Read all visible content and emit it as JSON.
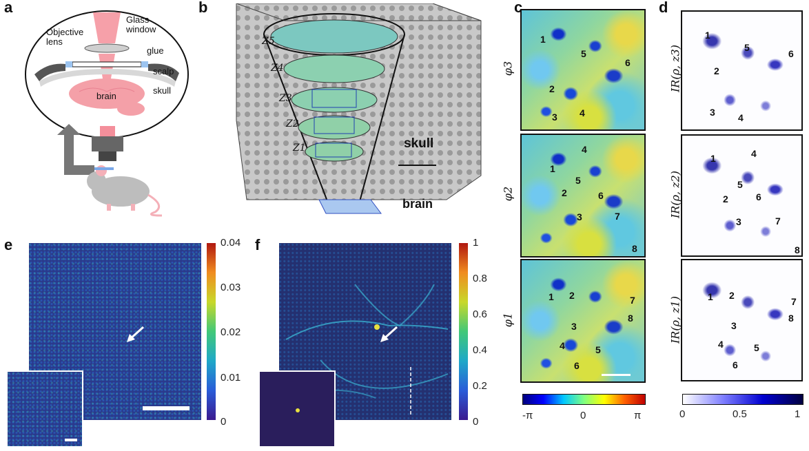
{
  "panel_labels": {
    "a": "a",
    "b": "b",
    "c": "c",
    "d": "d",
    "e": "e",
    "f": "f"
  },
  "panel_a": {
    "objective_lens": "Objective\nlens",
    "glass_window": "Glass\nwindow",
    "glue": "glue",
    "scalp": "scalp",
    "skull": "skull",
    "brain": "brain"
  },
  "panel_b": {
    "z_labels": [
      "Z5",
      "Z4",
      "Z3",
      "Z2",
      "Z1"
    ],
    "skull": "skull",
    "brain": "brain"
  },
  "panel_c": {
    "row_labels": [
      "φ3",
      "φ2",
      "φ1"
    ],
    "numbers": [
      [
        "1",
        "5",
        "6",
        "2",
        "3",
        "4"
      ],
      [
        "4",
        "1",
        "5",
        "2",
        "6",
        "3",
        "7",
        "8"
      ],
      [
        "1",
        "2",
        "7",
        "8",
        "3",
        "4",
        "5",
        "6"
      ]
    ],
    "colorbar_ticks": [
      "-π",
      "0",
      "π"
    ]
  },
  "panel_d": {
    "row_labels": [
      "IR(ρ, z3)",
      "IR(ρ, z2)",
      "IR(ρ, z1)"
    ],
    "numbers": [
      [
        "1",
        "5",
        "6",
        "2",
        "3",
        "4"
      ],
      [
        "1",
        "4",
        "5",
        "2",
        "6",
        "3",
        "7",
        "8"
      ],
      [
        "1",
        "2",
        "7",
        "8",
        "3",
        "4",
        "5",
        "6"
      ]
    ],
    "colorbar_ticks": [
      "0",
      "0.5",
      "1"
    ]
  },
  "panel_e": {
    "colorbar_ticks": [
      "0.04",
      "0.03",
      "0.02",
      "0.01",
      "0"
    ]
  },
  "panel_f": {
    "colorbar_ticks": [
      "1",
      "0.8",
      "0.6",
      "0.4",
      "0.2",
      "0"
    ]
  }
}
